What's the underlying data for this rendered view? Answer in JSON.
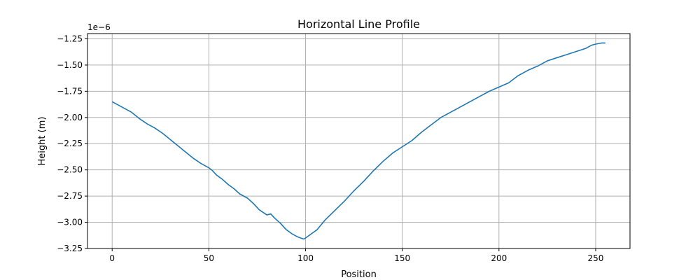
{
  "chart_data": {
    "type": "line",
    "title": "Horizontal Line Profile",
    "xlabel": "Position",
    "ylabel": "Height (m)",
    "offset_text": "1e−6",
    "xlim": [
      -12.75,
      267.75
    ],
    "ylim": [
      -3.25,
      -1.2
    ],
    "xticks": [
      0,
      50,
      100,
      150,
      200,
      250
    ],
    "xtick_labels": [
      "0",
      "50",
      "100",
      "150",
      "200",
      "250"
    ],
    "yticks": [
      -3.25,
      -3.0,
      -2.75,
      -2.5,
      -2.25,
      -2.0,
      -1.75,
      -1.5,
      -1.25
    ],
    "ytick_labels": [
      "−3.25",
      "−3.00",
      "−2.75",
      "−2.50",
      "−2.25",
      "−2.00",
      "−1.75",
      "−1.50",
      "−1.25"
    ],
    "grid": true,
    "line_color": "#1f77b4",
    "series": [
      {
        "x": [
          0,
          3,
          6,
          10,
          14,
          18,
          22,
          26,
          30,
          34,
          38,
          42,
          46,
          50,
          52,
          54,
          57,
          60,
          63,
          66,
          70,
          73,
          76,
          80,
          82,
          84,
          87,
          90,
          93,
          96,
          99,
          100,
          103,
          106,
          110,
          115,
          120,
          125,
          130,
          135,
          140,
          145,
          150,
          155,
          160,
          165,
          170,
          175,
          180,
          185,
          190,
          195,
          200,
          205,
          210,
          215,
          220,
          225,
          230,
          235,
          240,
          245,
          248,
          250,
          253,
          255
        ],
        "y": [
          -1.85,
          -1.88,
          -1.91,
          -1.95,
          -2.01,
          -2.06,
          -2.1,
          -2.15,
          -2.21,
          -2.27,
          -2.33,
          -2.39,
          -2.44,
          -2.48,
          -2.51,
          -2.55,
          -2.59,
          -2.64,
          -2.68,
          -2.73,
          -2.77,
          -2.82,
          -2.88,
          -2.93,
          -2.92,
          -2.96,
          -3.01,
          -3.07,
          -3.11,
          -3.14,
          -3.16,
          -3.15,
          -3.11,
          -3.07,
          -2.98,
          -2.89,
          -2.8,
          -2.7,
          -2.61,
          -2.51,
          -2.42,
          -2.34,
          -2.28,
          -2.22,
          -2.14,
          -2.07,
          -2.0,
          -1.95,
          -1.9,
          -1.85,
          -1.8,
          -1.75,
          -1.71,
          -1.67,
          -1.6,
          -1.55,
          -1.51,
          -1.46,
          -1.43,
          -1.4,
          -1.37,
          -1.34,
          -1.31,
          -1.3,
          -1.29,
          -1.29
        ]
      }
    ]
  }
}
